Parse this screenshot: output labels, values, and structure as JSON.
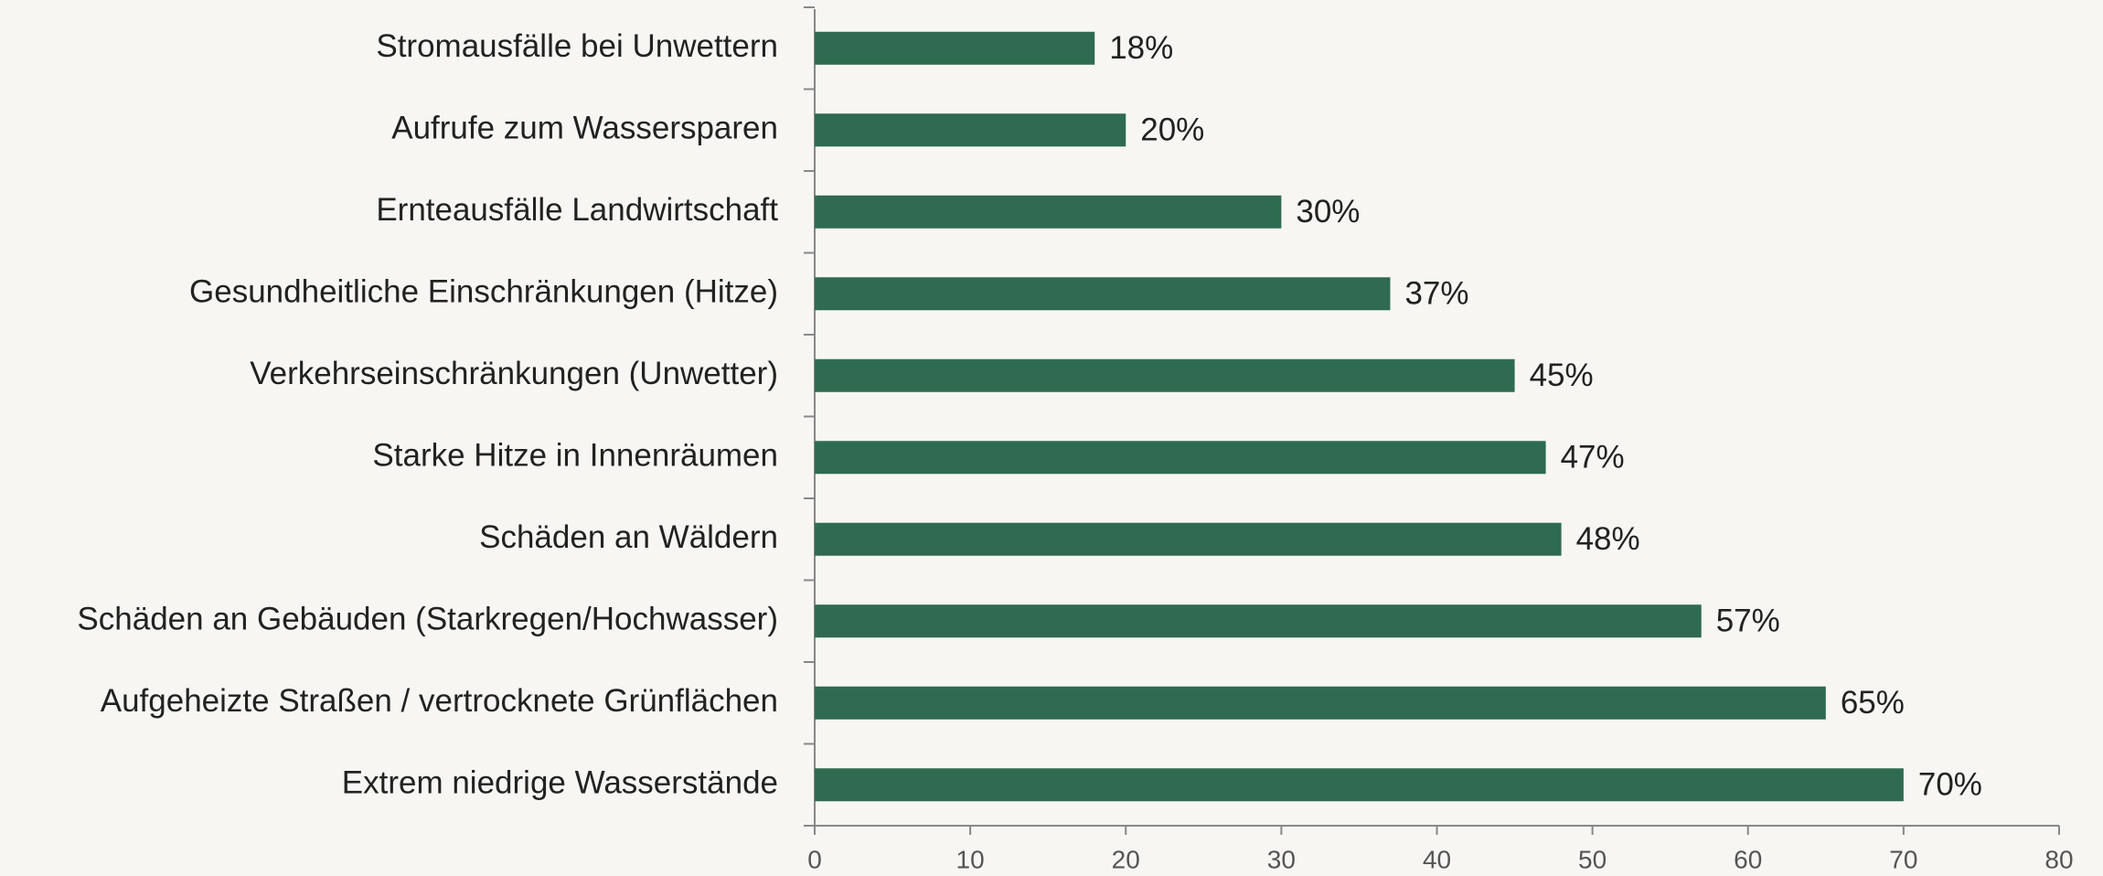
{
  "chart_data": {
    "type": "barh",
    "categories": [
      "Stromausfälle bei Unwettern",
      "Aufrufe zum Wassersparen",
      "Ernteausfälle Landwirtschaft",
      "Gesundheitliche Einschränkungen (Hitze)",
      "Verkehrseinschränkungen (Unwetter)",
      "Starke Hitze in Innenräumen",
      "Schäden an Wäldern",
      "Schäden an Gebäuden (Starkregen/Hochwasser)",
      "Aufgeheizte Straßen / vertrocknete Grünflächen",
      "Extrem niedrige Wasserstände"
    ],
    "values": [
      18,
      20,
      30,
      37,
      45,
      47,
      48,
      57,
      65,
      70
    ],
    "value_labels": [
      "18%",
      "20%",
      "30%",
      "37%",
      "45%",
      "47%",
      "48%",
      "57%",
      "65%",
      "70%"
    ],
    "color": "#2e6b50",
    "xlim": [
      0,
      80
    ],
    "xticks": [
      0,
      10,
      20,
      30,
      40,
      50,
      60,
      70,
      80
    ],
    "grid": false
  }
}
